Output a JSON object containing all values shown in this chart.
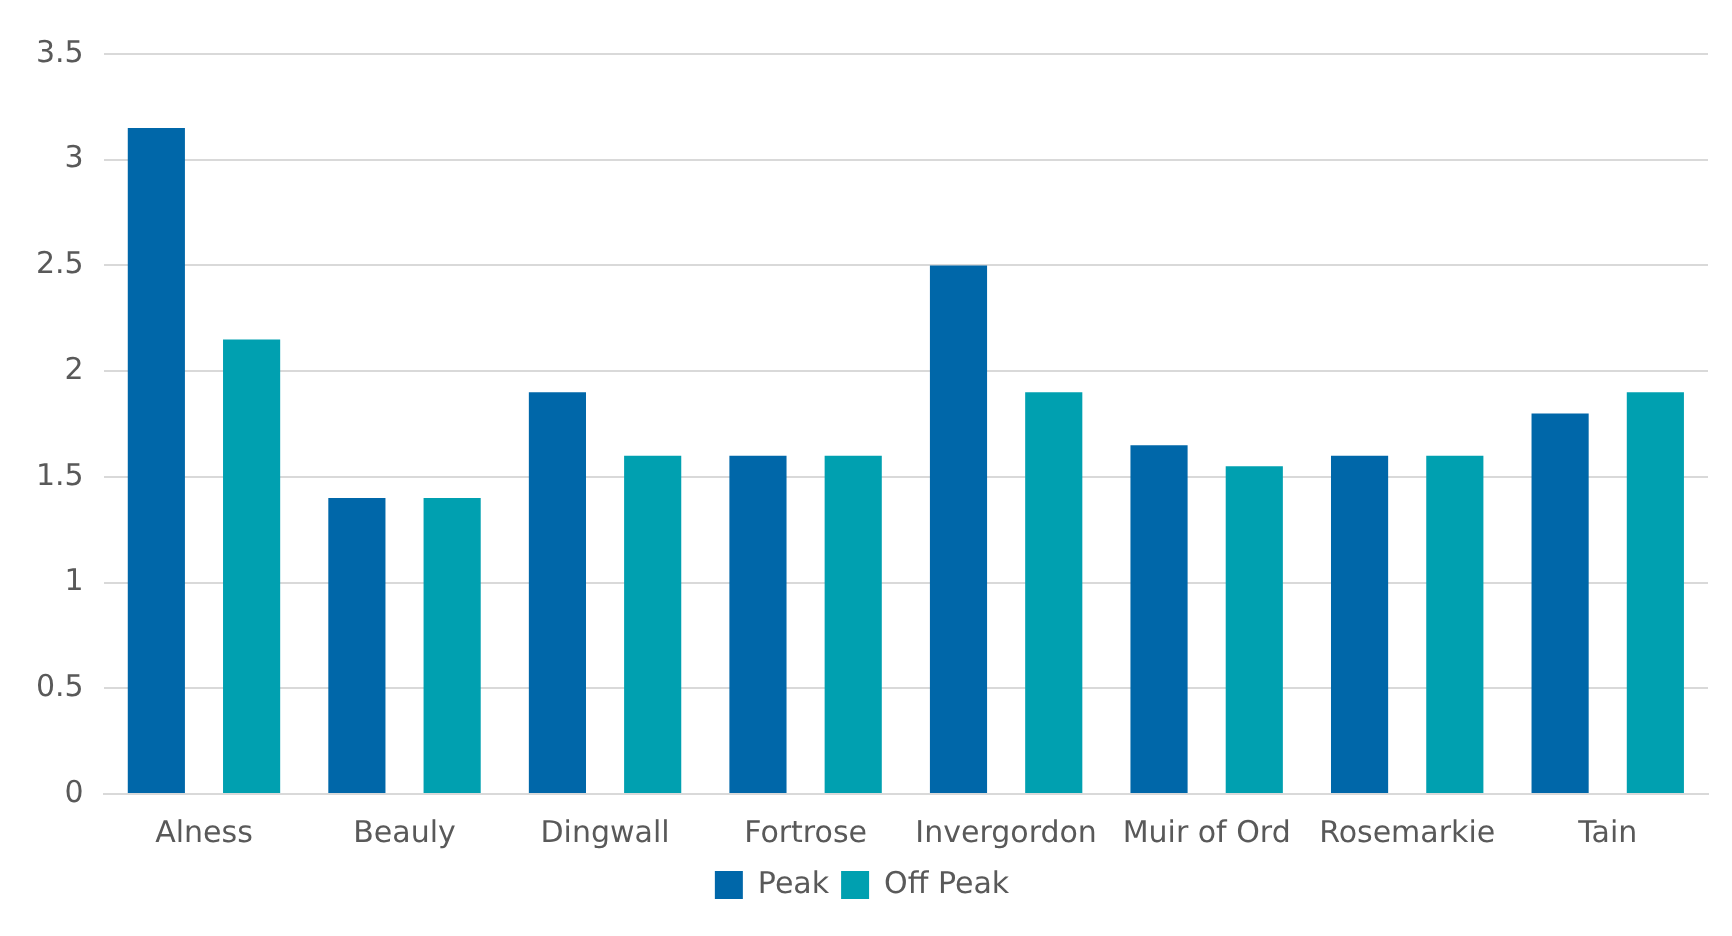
{
  "chart_data": {
    "type": "bar",
    "categories": [
      "Alness",
      "Beauly",
      "Dingwall",
      "Fortrose",
      "Invergordon",
      "Muir of Ord",
      "Rosemarkie",
      "Tain"
    ],
    "series": [
      {
        "name": "Peak",
        "color": "#0067a9",
        "values": [
          3.15,
          1.4,
          1.9,
          1.6,
          2.5,
          1.65,
          1.6,
          1.8
        ]
      },
      {
        "name": "Off Peak",
        "color": "#00a0b0",
        "values": [
          2.15,
          1.4,
          1.6,
          1.6,
          1.9,
          1.55,
          1.6,
          1.9
        ]
      }
    ],
    "ylim": [
      0,
      3.5
    ],
    "yticks": [
      0,
      0.5,
      1,
      1.5,
      2,
      2.5,
      3,
      3.5
    ],
    "grid": "y",
    "legend": "bottom"
  }
}
